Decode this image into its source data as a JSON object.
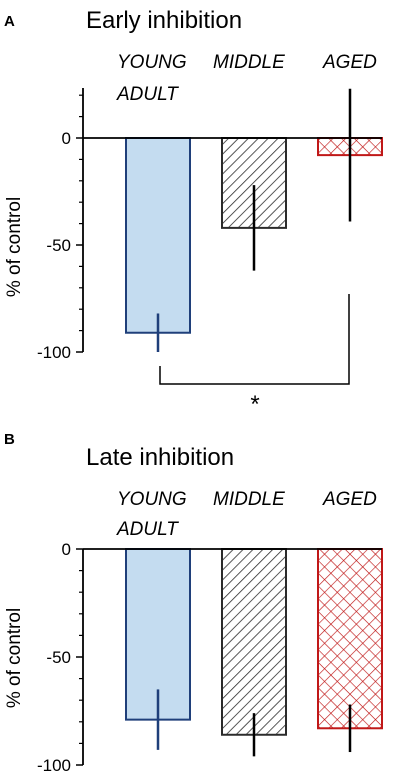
{
  "chart_data": [
    {
      "type": "bar",
      "panel": "A",
      "title": "Early inhibition",
      "ylabel": "% of control",
      "categories": [
        "YOUNG ADULT",
        "MIDDLE",
        "AGED"
      ],
      "category_lines": [
        [
          "YOUNG",
          "ADULT"
        ],
        [
          "MIDDLE"
        ],
        [
          "AGED"
        ]
      ],
      "values": [
        -91,
        -42,
        -8
      ],
      "error": [
        9,
        20,
        31
      ],
      "ylim": [
        -100,
        20
      ],
      "yticks": [
        "0",
        "-50",
        "-100"
      ],
      "significance": {
        "between": [
          "YOUNG ADULT",
          "AGED"
        ],
        "label": "*"
      },
      "colors": {
        "young": "#c4dcf0",
        "young_edge": "#1f3f7a",
        "middle": "#2b2b2b",
        "aged": "#c01818"
      }
    },
    {
      "type": "bar",
      "panel": "B",
      "title": "Late inhibition",
      "ylabel": "% of control",
      "categories": [
        "YOUNG ADULT",
        "MIDDLE",
        "AGED"
      ],
      "category_lines": [
        [
          "YOUNG",
          "ADULT"
        ],
        [
          "MIDDLE"
        ],
        [
          "AGED"
        ]
      ],
      "values": [
        -79,
        -86,
        -83
      ],
      "error": [
        14,
        10,
        11
      ],
      "ylim": [
        -100,
        0
      ],
      "yticks": [
        "0",
        "-50",
        "-100"
      ],
      "colors": {
        "young": "#c4dcf0",
        "young_edge": "#1f3f7a",
        "middle": "#2b2b2b",
        "aged": "#c01818"
      }
    }
  ]
}
